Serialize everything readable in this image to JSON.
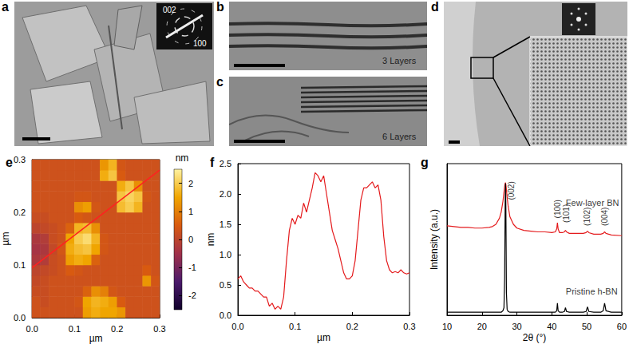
{
  "panels": [
    {
      "label": "a",
      "texts": [
        "002",
        "100"
      ]
    },
    {
      "label": "b",
      "texts": [
        "3 Layers"
      ]
    },
    {
      "label": "c",
      "texts": [
        "6 Layers"
      ]
    },
    {
      "label": "d"
    }
  ],
  "chart_data": [
    {
      "type": "heatmap",
      "title": "e",
      "xlim": [
        0,
        0.3
      ],
      "xticks": [
        {
          "value": 0,
          "label": "0.0"
        },
        0.1,
        0.2,
        0.3
      ],
      "ylim": [
        0,
        0.3
      ],
      "yticks": [
        {
          "value": 0,
          "label": "0.0"
        },
        0.1,
        0.2,
        0.3
      ],
      "xlabel": "µm",
      "ylabel": "µm",
      "cells": [
        [
          0.3,
          0.3,
          0.3,
          0.3,
          0.3,
          0.3,
          1.4,
          1.6,
          1.5,
          1.5,
          1.3,
          0.3,
          0.3,
          0.3,
          0.3
        ],
        [
          0.3,
          0.2,
          0.3,
          0.3,
          0.3,
          0.4,
          1.5,
          1.7,
          1.6,
          1.4,
          0.5,
          0.3,
          0.3,
          0.3,
          0.3
        ],
        [
          0.2,
          0.2,
          0.3,
          0.3,
          0.3,
          0.3,
          0.6,
          1.2,
          1.0,
          0.4,
          0.3,
          0.3,
          0.3,
          0.3,
          0.3
        ],
        [
          0.1,
          0.2,
          0.3,
          0.3,
          0.3,
          0.3,
          0.3,
          0.3,
          0.3,
          0.3,
          0.3,
          0.3,
          0.3,
          1.3,
          0.4
        ],
        [
          0.0,
          0.1,
          0.2,
          0.3,
          0.5,
          0.4,
          0.3,
          0.3,
          0.3,
          0.3,
          0.3,
          0.3,
          0.3,
          0.5,
          0.3
        ],
        [
          -0.3,
          -0.2,
          0.2,
          0.3,
          1.4,
          1.6,
          1.5,
          0.6,
          0.3,
          0.3,
          0.3,
          0.3,
          0.3,
          0.3,
          0.3
        ],
        [
          -0.4,
          -0.3,
          0.1,
          0.4,
          1.6,
          1.8,
          1.9,
          1.5,
          0.4,
          0.3,
          0.3,
          0.3,
          0.3,
          0.3,
          0.3
        ],
        [
          -0.3,
          -0.2,
          0.2,
          0.3,
          1.5,
          2.0,
          2.2,
          1.7,
          0.4,
          0.3,
          0.3,
          0.3,
          0.3,
          0.3,
          0.3
        ],
        [
          0.0,
          0.1,
          0.2,
          0.3,
          0.6,
          1.7,
          1.8,
          1.2,
          0.3,
          0.3,
          0.3,
          0.3,
          0.3,
          0.3,
          0.3
        ],
        [
          0.2,
          0.2,
          0.3,
          0.3,
          0.3,
          0.5,
          0.4,
          0.3,
          0.3,
          0.3,
          0.3,
          0.3,
          0.3,
          0.3,
          0.3
        ],
        [
          0.3,
          0.3,
          0.3,
          0.3,
          0.3,
          1.2,
          1.4,
          0.4,
          0.3,
          0.3,
          1.8,
          2.0,
          1.7,
          0.3,
          0.3
        ],
        [
          0.3,
          0.3,
          0.3,
          0.3,
          0.3,
          0.4,
          0.4,
          0.3,
          0.3,
          0.3,
          1.9,
          2.1,
          1.9,
          0.4,
          0.3
        ],
        [
          0.3,
          0.3,
          0.3,
          0.3,
          0.3,
          0.3,
          0.3,
          0.3,
          0.3,
          0.3,
          1.6,
          1.9,
          1.2,
          0.3,
          0.3
        ],
        [
          0.3,
          0.3,
          0.3,
          0.3,
          0.3,
          0.3,
          0.3,
          0.3,
          1.6,
          1.9,
          0.5,
          0.3,
          0.3,
          0.3,
          0.3
        ],
        [
          0.3,
          0.3,
          0.3,
          0.3,
          0.3,
          0.3,
          0.3,
          0.3,
          1.3,
          1.7,
          0.4,
          0.3,
          0.3,
          0.3,
          0.3
        ]
      ],
      "colorbar": {
        "range": [
          -2.5,
          2.5
        ],
        "ticks": [
          2,
          1,
          0,
          -1,
          -2
        ],
        "label": "nm"
      },
      "profile_line": {
        "x": [
          0,
          0.3
        ],
        "y": [
          0.095,
          0.28
        ],
        "color": "#ff2020"
      }
    },
    {
      "type": "line",
      "title": "f",
      "xlim": [
        0,
        0.3
      ],
      "xticks": [
        {
          "value": 0,
          "label": "0.0"
        },
        0.1,
        0.2,
        0.3
      ],
      "ylim": [
        0,
        2.5
      ],
      "yticks": [
        {
          "value": 0,
          "label": "0.0"
        },
        0.5,
        {
          "value": 1,
          "label": "1.0"
        },
        1.5,
        {
          "value": 2,
          "label": "2.0"
        },
        2.5
      ],
      "xlabel": "µm",
      "ylabel": "nm",
      "color": "#e41a1c",
      "x": [
        0,
        0.005,
        0.01,
        0.015,
        0.02,
        0.025,
        0.03,
        0.035,
        0.04,
        0.045,
        0.05,
        0.055,
        0.06,
        0.065,
        0.07,
        0.075,
        0.08,
        0.085,
        0.09,
        0.095,
        0.1,
        0.105,
        0.11,
        0.115,
        0.12,
        0.125,
        0.13,
        0.135,
        0.14,
        0.145,
        0.15,
        0.155,
        0.16,
        0.165,
        0.17,
        0.175,
        0.18,
        0.185,
        0.19,
        0.195,
        0.2,
        0.205,
        0.21,
        0.215,
        0.22,
        0.225,
        0.23,
        0.235,
        0.24,
        0.245,
        0.25,
        0.255,
        0.26,
        0.265,
        0.27,
        0.275,
        0.28,
        0.285,
        0.29,
        0.295,
        0.3
      ],
      "values": [
        0.6,
        0.65,
        0.55,
        0.5,
        0.45,
        0.45,
        0.4,
        0.4,
        0.35,
        0.3,
        0.3,
        0.15,
        0.2,
        0.1,
        0.15,
        0.1,
        0.3,
        0.9,
        1.4,
        1.6,
        1.5,
        1.65,
        1.6,
        1.85,
        1.7,
        1.9,
        2.1,
        2.35,
        2.3,
        2.2,
        2.3,
        2.0,
        1.7,
        1.4,
        1.25,
        1.1,
        0.9,
        0.7,
        0.6,
        0.6,
        0.65,
        0.9,
        1.4,
        1.9,
        2.1,
        2.1,
        2.15,
        2.2,
        2.1,
        2.15,
        1.9,
        1.3,
        0.9,
        0.75,
        0.7,
        0.72,
        0.7,
        0.75,
        0.7,
        0.68,
        0.7
      ]
    },
    {
      "type": "line",
      "title": "g",
      "xlim": [
        10,
        60
      ],
      "xticks": [
        10,
        20,
        30,
        40,
        50,
        60
      ],
      "ylim": [
        0,
        10
      ],
      "tick_labels": "x",
      "xlabel": "2θ (°)",
      "ylabel": "Intensity (a.u.)",
      "x": [
        10,
        12,
        14,
        16,
        18,
        20,
        22,
        23,
        24,
        25,
        25.5,
        26,
        26.3,
        26.5,
        26.65,
        26.75,
        26.85,
        27,
        27.2,
        27.5,
        28,
        29,
        30,
        32,
        34,
        36,
        38,
        40,
        41,
        41.4,
        41.6,
        41.8,
        42.2,
        43,
        43.6,
        43.9,
        44.2,
        45,
        47,
        49,
        49.8,
        50.2,
        50.6,
        52,
        54,
        54.7,
        55.1,
        55.5,
        57,
        60
      ],
      "series": [
        {
          "color": "#e41a1c",
          "values": [
            5.9,
            5.85,
            5.8,
            5.8,
            5.75,
            5.75,
            5.8,
            5.85,
            6.0,
            6.4,
            6.8,
            7.5,
            8.1,
            8.5,
            8.7,
            8.75,
            8.6,
            8.3,
            7.8,
            7.2,
            6.5,
            6.0,
            5.75,
            5.6,
            5.55,
            5.5,
            5.5,
            5.45,
            5.5,
            5.7,
            6.1,
            5.7,
            5.45,
            5.45,
            5.5,
            5.6,
            5.5,
            5.4,
            5.4,
            5.4,
            5.45,
            5.55,
            5.45,
            5.35,
            5.35,
            5.4,
            5.5,
            5.4,
            5.3,
            5.25
          ]
        },
        {
          "color": "#000000",
          "values": [
            0.2,
            0.2,
            0.2,
            0.2,
            0.2,
            0.2,
            0.2,
            0.2,
            0.2,
            0.2,
            0.2,
            0.3,
            0.5,
            2.5,
            7.5,
            8.7,
            7.0,
            1.5,
            0.4,
            0.25,
            0.2,
            0.2,
            0.2,
            0.2,
            0.2,
            0.2,
            0.2,
            0.2,
            0.2,
            0.3,
            0.8,
            0.3,
            0.2,
            0.2,
            0.25,
            0.5,
            0.25,
            0.2,
            0.2,
            0.2,
            0.25,
            0.55,
            0.25,
            0.2,
            0.2,
            0.3,
            0.8,
            0.3,
            0.2,
            0.2
          ]
        }
      ],
      "peak_labels": [
        {
          "text": "(002)",
          "x": 28.3,
          "y": 7.6
        },
        {
          "text": "(100)",
          "x": 41.6,
          "y": 6.4
        },
        {
          "text": "(101)",
          "x": 44.2,
          "y": 6.1
        },
        {
          "text": "(102)",
          "x": 50.2,
          "y": 5.9
        },
        {
          "text": "(004)",
          "x": 55.1,
          "y": 5.9
        }
      ],
      "annotations": [
        {
          "text": "Few-layer BN",
          "x": 44,
          "y": 7.4
        },
        {
          "text": "Pristine h-BN",
          "x": 44,
          "y": 1.6
        }
      ]
    }
  ]
}
